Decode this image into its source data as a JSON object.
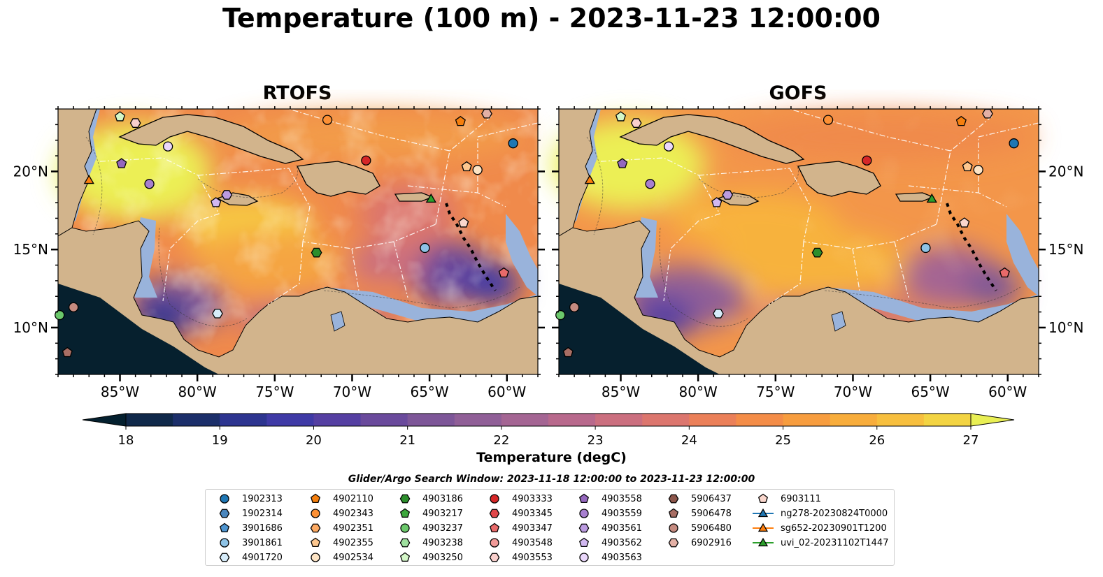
{
  "title": "Temperature (100 m) - 2023-11-23 12:00:00",
  "panels": [
    {
      "title": "RTOFS"
    },
    {
      "title": "GOFS"
    }
  ],
  "latitude_labels": [
    "20°N",
    "15°N",
    "10°N"
  ],
  "longitude_labels": [
    "85°W",
    "80°W",
    "75°W",
    "70°W",
    "65°W",
    "60°W"
  ],
  "map_extent": {
    "lon_min": -89,
    "lon_max": -58,
    "lat_min": 7,
    "lat_max": 24
  },
  "colorbar": {
    "label": "Temperature (degC)",
    "ticks": [
      "18",
      "19",
      "20",
      "21",
      "22",
      "23",
      "24",
      "25",
      "26",
      "27"
    ],
    "min": 18,
    "max": 27,
    "colormap": "thermal",
    "colors": [
      "#04202f",
      "#10294a",
      "#1c2f6a",
      "#2d3590",
      "#3f3aa6",
      "#553fa2",
      "#6a4a9c",
      "#7d5698",
      "#905f97",
      "#a46593",
      "#b8698c",
      "#cb6f7f",
      "#dc766e",
      "#eb8059",
      "#f48d48",
      "#f79d3f",
      "#f8ad3c",
      "#f7bf3e",
      "#f3d443",
      "#e9ef54"
    ]
  },
  "legend": {
    "title": "Glider/Argo Search Window: 2023-11-18 12:00:00 to 2023-11-23 12:00:00",
    "columns": [
      [
        {
          "label": "1902313",
          "marker": "circle",
          "color": "#1f77b4"
        },
        {
          "label": "1902314",
          "marker": "hexagon",
          "color": "#4a86bd"
        },
        {
          "label": "3901686",
          "marker": "pentagon",
          "color": "#4f95d0"
        },
        {
          "label": "3901861",
          "marker": "circle",
          "color": "#8ec3e6"
        },
        {
          "label": "4901720",
          "marker": "hexagon",
          "color": "#d6ecfa"
        }
      ],
      [
        {
          "label": "4902110",
          "marker": "pentagon",
          "color": "#f57f0e"
        },
        {
          "label": "4902343",
          "marker": "circle",
          "color": "#fd9034"
        },
        {
          "label": "4902351",
          "marker": "hexagon",
          "color": "#fdaa63"
        },
        {
          "label": "4902355",
          "marker": "pentagon",
          "color": "#fdc78f"
        },
        {
          "label": "4902534",
          "marker": "circle",
          "color": "#fde4c5"
        }
      ],
      [
        {
          "label": "4903186",
          "marker": "hexagon",
          "color": "#2c8e2c"
        },
        {
          "label": "4903217",
          "marker": "pentagon",
          "color": "#3ea83e"
        },
        {
          "label": "4903237",
          "marker": "circle",
          "color": "#6bc86b"
        },
        {
          "label": "4903238",
          "marker": "hexagon",
          "color": "#9fe09f"
        },
        {
          "label": "4903250",
          "marker": "pentagon",
          "color": "#d4f7c8"
        }
      ],
      [
        {
          "label": "4903333",
          "marker": "circle",
          "color": "#d62728"
        },
        {
          "label": "4903345",
          "marker": "hexagon",
          "color": "#e0474a"
        },
        {
          "label": "4903347",
          "marker": "pentagon",
          "color": "#e86a6a"
        },
        {
          "label": "4903548",
          "marker": "circle",
          "color": "#f19a98"
        },
        {
          "label": "4903553",
          "marker": "hexagon",
          "color": "#f9cfcc"
        }
      ],
      [
        {
          "label": "4903558",
          "marker": "pentagon",
          "color": "#9467bd"
        },
        {
          "label": "4903559",
          "marker": "circle",
          "color": "#a77fcf"
        },
        {
          "label": "4903561",
          "marker": "hexagon",
          "color": "#bb9be0"
        },
        {
          "label": "4903562",
          "marker": "pentagon",
          "color": "#d1b8f0"
        },
        {
          "label": "4903563",
          "marker": "circle",
          "color": "#ead7fb"
        }
      ],
      [
        {
          "label": "5906437",
          "marker": "hexagon",
          "color": "#8c564b"
        },
        {
          "label": "5906478",
          "marker": "pentagon",
          "color": "#a86e64"
        },
        {
          "label": "5906480",
          "marker": "circle",
          "color": "#c58b80"
        },
        {
          "label": "6902916",
          "marker": "hexagon",
          "color": "#e3b0a5"
        }
      ],
      [
        {
          "label": "6903111",
          "marker": "pentagon",
          "color": "#f9d6cc"
        },
        {
          "label": "ng278-20230824T0000",
          "marker": "triangle",
          "color": "#1f77b4"
        },
        {
          "label": "sg652-20230901T1200",
          "marker": "triangle",
          "color": "#ff7f0e"
        },
        {
          "label": "uvi_02-20231102T1447",
          "marker": "triangle",
          "color": "#2ca02c"
        }
      ]
    ]
  },
  "map_markers": [
    {
      "id": "1902313",
      "lon": -59.6,
      "lat": 21.8
    },
    {
      "id": "3901861",
      "lon": -65.3,
      "lat": 15.1
    },
    {
      "id": "4901720",
      "lon": -78.7,
      "lat": 10.9
    },
    {
      "id": "4902110",
      "lon": -63.0,
      "lat": 23.2
    },
    {
      "id": "4902343",
      "lon": -71.6,
      "lat": 23.3
    },
    {
      "id": "4902355",
      "lon": -62.6,
      "lat": 20.3
    },
    {
      "id": "4902534",
      "lon": -61.9,
      "lat": 20.1
    },
    {
      "id": "4903186",
      "lon": -72.3,
      "lat": 14.8
    },
    {
      "id": "4903237",
      "lon": -88.9,
      "lat": 10.8
    },
    {
      "id": "4903250",
      "lon": -85.0,
      "lat": 23.5
    },
    {
      "id": "4903333",
      "lon": -69.1,
      "lat": 20.7
    },
    {
      "id": "4903347",
      "lon": -60.2,
      "lat": 13.5
    },
    {
      "id": "4903553",
      "lon": -84.0,
      "lat": 23.1
    },
    {
      "id": "4903558",
      "lon": -84.9,
      "lat": 20.5
    },
    {
      "id": "4903559",
      "lon": -83.1,
      "lat": 19.2
    },
    {
      "id": "4903561",
      "lon": -78.1,
      "lat": 18.5
    },
    {
      "id": "4903562",
      "lon": -78.8,
      "lat": 18.0
    },
    {
      "id": "4903563",
      "lon": -81.9,
      "lat": 21.6
    },
    {
      "id": "5906478",
      "lon": -88.4,
      "lat": 8.4
    },
    {
      "id": "5906480",
      "lon": -88.0,
      "lat": 11.3
    },
    {
      "id": "6902916",
      "lon": -61.3,
      "lat": 23.7
    },
    {
      "id": "6903111",
      "lon": -62.8,
      "lat": 16.7
    },
    {
      "id": "sg652-20230901T1200",
      "lon": -87.0,
      "lat": 19.4
    },
    {
      "id": "uvi_02-20231102T1447",
      "lon": -64.9,
      "lat": 18.2
    }
  ]
}
